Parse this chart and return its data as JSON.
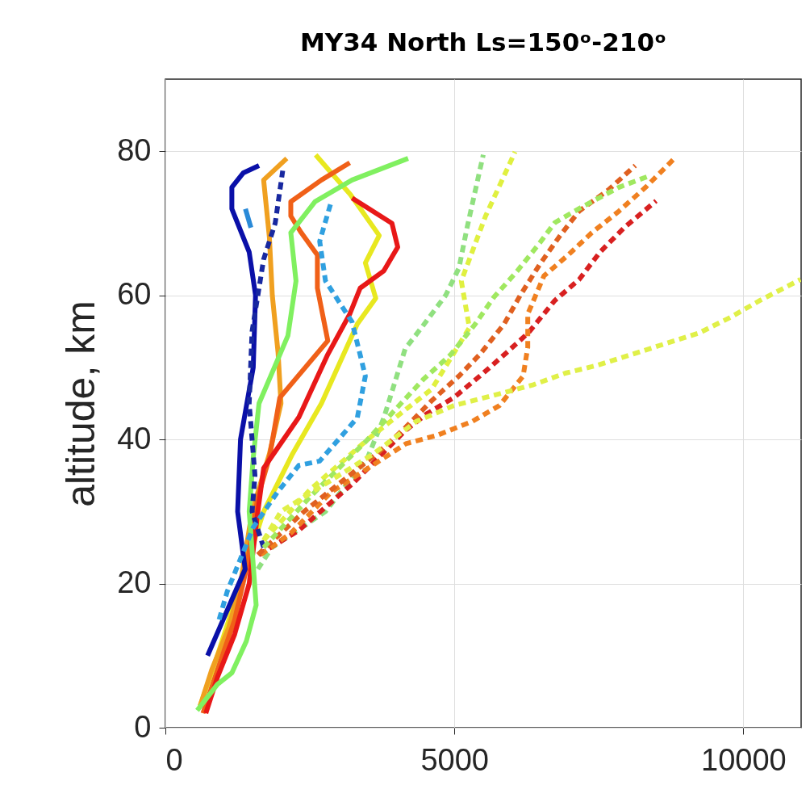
{
  "chart_data": {
    "type": "line",
    "title": "MY34 North Ls=150ᵒ-210ᵒ",
    "ylabel": "altitude, km",
    "xlim": [
      0,
      11000
    ],
    "xticks": [
      0,
      5000,
      10000
    ],
    "ylim": [
      0,
      90
    ],
    "yticks": [
      0,
      20,
      40,
      60,
      80
    ],
    "grid": true,
    "series": [
      {
        "color": "#e8e820",
        "line_style": "solid",
        "x": [
          600,
          900,
          1300,
          1700,
          2200,
          2700,
          3320,
          3640,
          3460,
          3700,
          3200,
          2870,
          2600
        ],
        "values": [
          3,
          10,
          20,
          30,
          38,
          45,
          56,
          59.6,
          64.5,
          68.3,
          74,
          77,
          79.5
        ]
      },
      {
        "color": "#f0a020",
        "line_style": "solid",
        "x": [
          600,
          800,
          1100,
          1300,
          1500,
          1800,
          2000,
          1950,
          1850,
          1800,
          1700,
          2100
        ],
        "values": [
          3,
          8,
          14,
          20,
          30,
          38,
          45,
          52,
          60,
          68,
          76,
          79
        ]
      },
      {
        "color": "#f06018",
        "line_style": "solid",
        "x": [
          650,
          900,
          1200,
          1400,
          1600,
          1800,
          1980,
          2810,
          2630,
          2630,
          2350,
          2170,
          2170,
          2700,
          3190
        ],
        "values": [
          2,
          8,
          15,
          22,
          32,
          37.5,
          45.8,
          53.7,
          61,
          65.6,
          68.7,
          71,
          73,
          76,
          78.4
        ]
      },
      {
        "color": "#e81818",
        "line_style": "solid",
        "x": [
          700,
          900,
          1200,
          1450,
          1600,
          1700,
          2310,
          2810,
          3190,
          3370,
          3780,
          4020,
          3920,
          3230
        ],
        "values": [
          2,
          7,
          13,
          20,
          30,
          36,
          43.1,
          51.8,
          57.4,
          61,
          63.4,
          66.7,
          70,
          73.5
        ]
      },
      {
        "color": "#80f060",
        "line_style": "solid",
        "x": [
          550,
          900,
          1150,
          1400,
          1570,
          1520,
          1450,
          1520,
          1620,
          2120,
          2260,
          2170,
          2590,
          3230,
          4200
        ],
        "values": [
          2.4,
          6,
          7.6,
          12,
          17,
          22.6,
          30,
          37.5,
          45,
          54.4,
          62,
          68.7,
          73,
          76,
          79
        ]
      },
      {
        "color": "#0a10a8",
        "line_style": "solid",
        "x": [
          730,
          1000,
          1380,
          1250,
          1300,
          1520,
          1560,
          1450,
          1150,
          1150,
          1350,
          1620
        ],
        "values": [
          10,
          15,
          22,
          30,
          40,
          50,
          60,
          66,
          72,
          75,
          77,
          78
        ]
      },
      {
        "color": "#2a8ad8",
        "line_style": "solid",
        "x": [
          1385,
          1480
        ],
        "values": [
          72,
          69.4
        ]
      },
      {
        "color": "#1828a0",
        "line_style": "dashed",
        "x": [
          1700,
          1500,
          1550,
          1450,
          1500,
          1700,
          1900,
          2030
        ],
        "values": [
          25,
          30,
          35,
          45,
          55,
          65,
          70,
          77.3
        ]
      },
      {
        "color": "#30a0e0",
        "line_style": "dashed",
        "x": [
          930,
          1070,
          1520,
          1940,
          2310,
          2670,
          3320,
          3460,
          3230,
          2770,
          2670,
          2870
        ],
        "values": [
          15,
          18.9,
          27.8,
          32.7,
          36.4,
          37,
          43,
          48.8,
          56.3,
          62,
          67.5,
          73
        ]
      },
      {
        "color": "#90e080",
        "line_style": "dashed",
        "x": [
          1600,
          1840,
          2770,
          3500,
          3780,
          4150,
          4430,
          4850,
          5080,
          5220,
          5500
        ],
        "values": [
          22,
          25,
          30,
          37.5,
          43,
          52.6,
          55.5,
          60,
          63.8,
          69.4,
          79.5
        ]
      },
      {
        "color": "#e0f040",
        "line_style": "dashed",
        "x": [
          1700,
          2500,
          3500,
          4610,
          5260,
          5120,
          5540,
          6050
        ],
        "values": [
          26,
          33,
          40,
          47,
          55.5,
          62,
          71,
          79.9
        ]
      },
      {
        "color": "#d82020",
        "line_style": "dashed",
        "x": [
          1620,
          2310,
          3230,
          4160,
          4530,
          4990,
          5500,
          5910,
          6280,
          6740,
          7160,
          7520,
          7940,
          8490
        ],
        "values": [
          24,
          27.4,
          33.8,
          41.3,
          43.6,
          45.8,
          49.2,
          52.1,
          54.8,
          59.3,
          62.2,
          66,
          69.4,
          73.1
        ]
      },
      {
        "color": "#f08020",
        "line_style": "dashed",
        "x": [
          1650,
          2170,
          2870,
          4160,
          4710,
          5310,
          5780,
          6190,
          6270,
          6270,
          6550,
          6970,
          7380,
          7850,
          8310,
          8820
        ],
        "values": [
          24,
          27,
          32.7,
          39.4,
          40.6,
          42.5,
          44.7,
          48.8,
          52.8,
          57.4,
          62.7,
          65.6,
          68.7,
          71.7,
          75,
          79.1
        ]
      },
      {
        "color": "#e06020",
        "line_style": "dashed",
        "x": [
          1600,
          2400,
          3700,
          4160,
          4610,
          5080,
          5440,
          5860,
          6140,
          6470,
          6830,
          7160,
          7660,
          8130
        ],
        "values": [
          24,
          30,
          38.3,
          41.7,
          45.4,
          48.8,
          51.8,
          56,
          60,
          64.2,
          68.3,
          71.7,
          74.6,
          78
        ]
      },
      {
        "color": "#a0e860",
        "line_style": "dashed",
        "x": [
          1700,
          2500,
          3500,
          4470,
          4940,
          5360,
          5680,
          6090,
          6470,
          6740,
          7240,
          7850,
          8350
        ],
        "values": [
          25,
          32,
          40,
          48.4,
          51.8,
          56,
          59.7,
          63.4,
          67.2,
          70.1,
          72.4,
          75,
          76.5
        ]
      },
      {
        "color": "#e0f048",
        "line_style": "dashed",
        "x": [
          1700,
          2000,
          2800,
          3600,
          4340,
          4990,
          5860,
          6370,
          6920,
          7480,
          8070,
          9240,
          9790,
          10290,
          10990
        ],
        "values": [
          26,
          30,
          34,
          38,
          42.5,
          44.7,
          46.5,
          47.6,
          49.2,
          50.3,
          51.8,
          54.8,
          57,
          59.3,
          62.2
        ]
      }
    ]
  }
}
